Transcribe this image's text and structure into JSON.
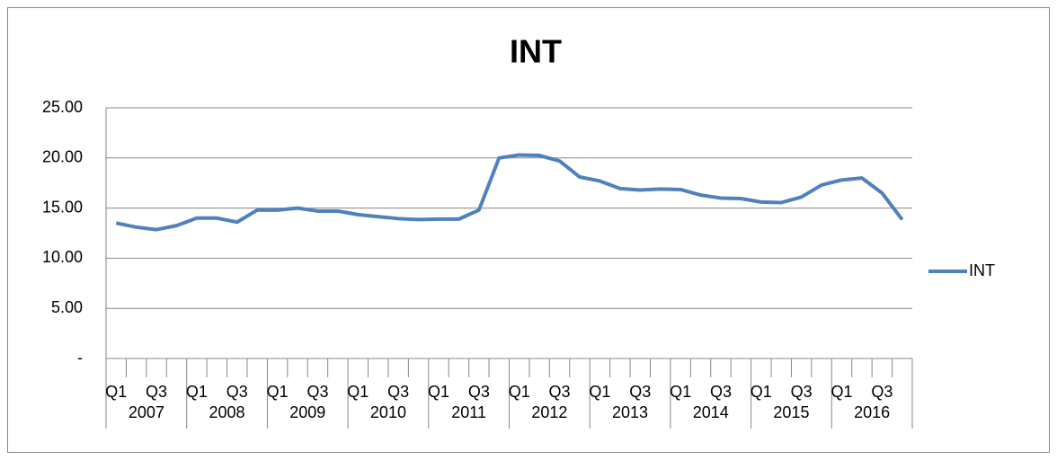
{
  "chart_data": {
    "type": "line",
    "title": "INT",
    "categories": [
      "Q1",
      null,
      "Q3",
      null,
      "Q1",
      null,
      "Q3",
      null,
      "Q1",
      null,
      "Q3",
      null,
      "Q1",
      null,
      "Q3",
      null,
      "Q1",
      null,
      "Q3",
      null,
      "Q1",
      null,
      "Q3",
      null,
      "Q1",
      null,
      "Q3",
      null,
      "Q1",
      null,
      "Q3",
      null,
      "Q1",
      null,
      "Q3",
      null,
      "Q1",
      null,
      "Q3",
      null
    ],
    "groups": [
      "2007",
      "2008",
      "2009",
      "2010",
      "2011",
      "2012",
      "2013",
      "2014",
      "2015",
      "2016"
    ],
    "series": [
      {
        "name": "INT",
        "color": "#4f81bd",
        "values": [
          13.5,
          13.1,
          12.85,
          13.25,
          14.0,
          14.0,
          13.6,
          14.8,
          14.8,
          15.0,
          14.7,
          14.7,
          14.35,
          14.15,
          13.95,
          13.85,
          13.9,
          13.9,
          14.8,
          20.0,
          20.3,
          20.25,
          19.7,
          18.1,
          17.7,
          16.95,
          16.8,
          16.9,
          16.85,
          16.3,
          16.0,
          15.95,
          15.6,
          15.55,
          16.1,
          17.3,
          17.8,
          18.0,
          16.5,
          13.85
        ]
      }
    ],
    "ylim": [
      0,
      25
    ],
    "yticks": [
      {
        "value": 0,
        "label": "-"
      },
      {
        "value": 5,
        "label": "5.00"
      },
      {
        "value": 10,
        "label": "10.00"
      },
      {
        "value": 15,
        "label": "15.00"
      },
      {
        "value": 20,
        "label": "20.00"
      },
      {
        "value": 25,
        "label": "25.00"
      }
    ],
    "grid": true,
    "legend": "right"
  }
}
